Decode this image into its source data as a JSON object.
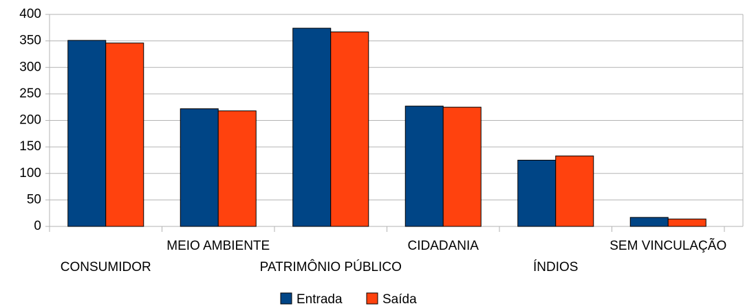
{
  "chart_data": {
    "type": "bar",
    "categories": [
      "CONSUMIDOR",
      "MEIO AMBIENTE",
      "PATRIMÔNIO PÚBLICO",
      "CIDADANIA",
      "ÍNDIOS",
      "SEM VINCULAÇÃO"
    ],
    "series": [
      {
        "name": "Entrada",
        "color": "#004586",
        "values": [
          351,
          222,
          374,
          227,
          125,
          17
        ]
      },
      {
        "name": "Saída",
        "color": "#ff420e",
        "values": [
          346,
          218,
          367,
          225,
          133,
          14
        ]
      }
    ],
    "ylim": [
      0,
      400
    ],
    "yticks": [
      0,
      50,
      100,
      150,
      200,
      250,
      300,
      350,
      400
    ],
    "grid": true,
    "legend": "bottom"
  }
}
